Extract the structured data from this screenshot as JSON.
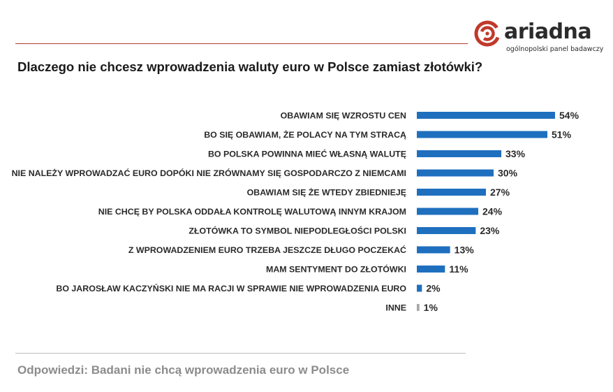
{
  "brand": {
    "name": "ariadna",
    "tagline": "ogólnopolski panel badawczy",
    "accent": "#c0392b"
  },
  "colors": {
    "bar": "#1f6fbf",
    "other_bar": "#a6a6a6"
  },
  "chart_data": {
    "type": "bar",
    "orientation": "horizontal",
    "title": "Dlaczego nie chcesz wprowadzenia waluty euro w Polsce zamiast złotówki?",
    "categories": [
      "OBAWIAM SIĘ WZROSTU CEN",
      "BO SIĘ OBAWIAM, ŻE POLACY NA TYM STRACĄ",
      "BO POLSKA POWINNA MIEĆ WŁASNĄ WALUTĘ",
      "NIE NALEŻY WPROWADZAĆ EURO DOPÓKI NIE ZRÓWNAMY SIĘ GOSPODARCZO Z NIEMCAMI",
      "OBAWIAM SIĘ ŻE WTEDY ZBIEDNIEJĘ",
      "NIE CHCĘ BY POLSKA ODDAŁA KONTROLĘ WALUTOWĄ INNYM KRAJOM",
      "ZŁOTÓWKA TO SYMBOL NIEPODLEGŁOŚCI POLSKI",
      "Z WPROWADZENIEM EURO TRZEBA JESZCZE DŁUGO POCZEKAĆ",
      "MAM SENTYMENT DO ZŁOTÓWKI",
      "BO JAROSŁAW KACZYŃSKI NIE MA RACJI W SPRAWIE NIE WPROWADZENIA EURO",
      "INNE"
    ],
    "values": [
      54,
      51,
      33,
      30,
      27,
      24,
      23,
      13,
      11,
      2,
      1
    ],
    "value_labels": [
      "54%",
      "51%",
      "33%",
      "30%",
      "27%",
      "24%",
      "23%",
      "13%",
      "11%",
      "2%",
      "1%"
    ],
    "unit": "%",
    "xlim": [
      0,
      54
    ],
    "grid": false,
    "legend": "none"
  },
  "footnote": "Odpowiedzi: Badani nie chcą wprowadzenia euro w Polsce"
}
